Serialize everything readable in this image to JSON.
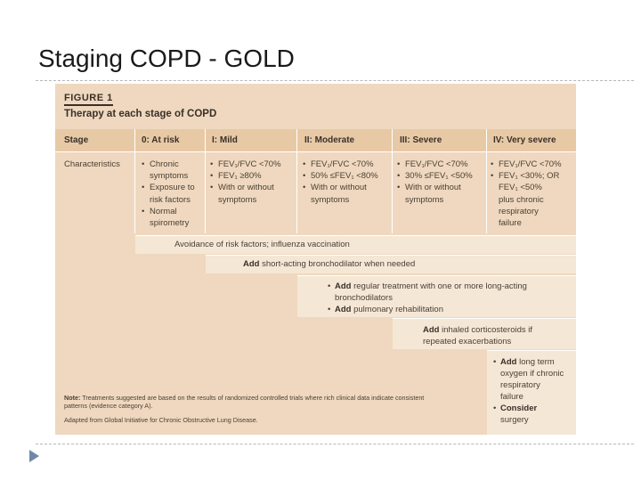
{
  "slide": {
    "title": "Staging COPD - GOLD"
  },
  "figure": {
    "label": "FIGURE 1",
    "caption": "Therapy at each stage of COPD",
    "headers": [
      "Stage",
      "0: At risk",
      "I: Mild",
      "II: Moderate",
      "III: Severe",
      "IV: Very severe"
    ],
    "row_label": "Characteristics",
    "characteristics": {
      "at_risk": [
        "Chronic symptoms",
        "Exposure to risk factors",
        "Normal spirometry"
      ],
      "mild": [
        "FEV₁/FVC <70%",
        "FEV₁ ≥80%",
        "With or without symptoms"
      ],
      "moderate": [
        "FEV₁/FVC <70%",
        "50% ≤FEV₁ <80%",
        "With or without symptoms"
      ],
      "severe": [
        "FEV₁/FVC <70%",
        "30% ≤FEV₁ <50%",
        "With or without symptoms"
      ],
      "very_severe_bullets": [
        "FEV₁/FVC <70%",
        "FEV₁ <30%; OR"
      ],
      "very_severe_tail": [
        "FEV₁ <50%",
        "plus chronic",
        "respiratory",
        "failure"
      ]
    },
    "therapy": {
      "band1": "Avoidance of risk factors; influenza vaccination",
      "band2_bold": "Add",
      "band2_rest": " short-acting bronchodilator when needed",
      "band3_line1_bold": "Add",
      "band3_line1_rest": " regular treatment with one or more long-acting",
      "band3_line2": "bronchodilators",
      "band3_line3_bold": "Add",
      "band3_line3_rest": " pulmonary rehabilitation",
      "band4_line1_bold": "Add",
      "band4_line1_rest": " inhaled corticosteroids if",
      "band4_line2": "repeated exacerbations",
      "band5_l1_bold": "Add",
      "band5_l1_rest": " long term",
      "band5_l2": "oxygen if chronic",
      "band5_l3": "respiratory",
      "band5_l4": "failure",
      "band5_l5_bold": "Consider",
      "band5_l6": "surgery"
    },
    "note_bold": "Note:",
    "note_rest": " Treatments suggested are based on the results of randomized controlled trials where rich clinical data indicate consistent patterns (evidence category A).",
    "adapted": "Adapted from Global Initiative for Chronic Obstructive Lung Disease."
  }
}
